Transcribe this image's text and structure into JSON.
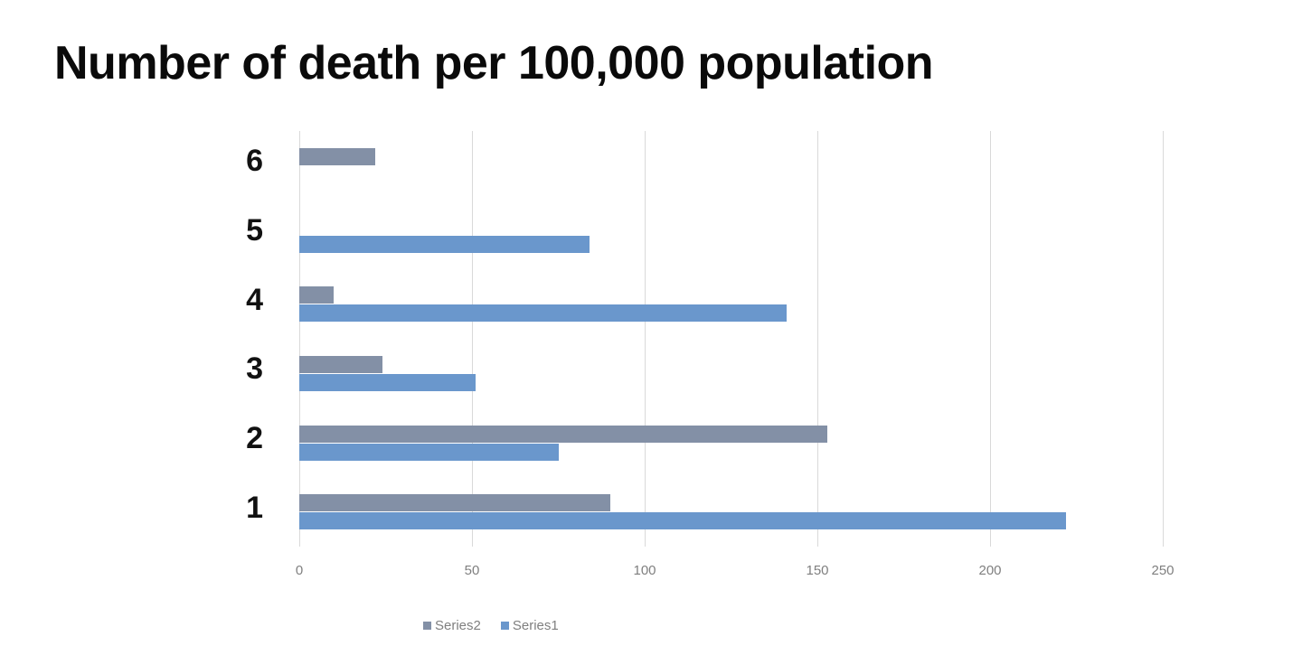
{
  "chart_data": {
    "type": "bar",
    "orientation": "horizontal",
    "title": "Number of death per 100,000 population",
    "xlabel": "",
    "ylabel": "",
    "categories": [
      "1",
      "2",
      "3",
      "4",
      "5",
      "6"
    ],
    "series": [
      {
        "name": "Series1",
        "color": "#6a97cc",
        "values": [
          222,
          75,
          51,
          141,
          84,
          0
        ]
      },
      {
        "name": "Series2",
        "color": "#8390a6",
        "values": [
          90,
          153,
          24,
          10,
          0,
          22
        ]
      }
    ],
    "xlim": [
      0,
      250
    ],
    "xticks": [
      "0",
      "50",
      "100",
      "150",
      "200",
      "250"
    ],
    "grid": "vertical",
    "legend_position": "bottom",
    "legend": [
      "Series2",
      "Series1"
    ]
  },
  "colors": {
    "series1": "#6a97cc",
    "series2": "#8390a6",
    "grid": "#d9d9d9",
    "tick_text": "#7f7f7f"
  }
}
